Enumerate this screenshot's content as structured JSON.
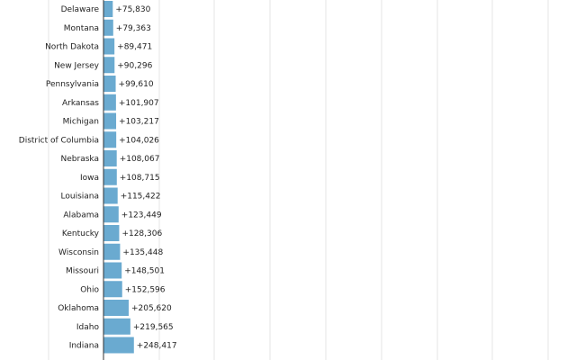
{
  "chart_data": {
    "type": "bar",
    "orientation": "horizontal",
    "value_prefix": "+",
    "categories": [
      "Delaware",
      "Montana",
      "North Dakota",
      "New Jersey",
      "Pennsylvania",
      "Arkansas",
      "Michigan",
      "District of Columbia",
      "Nebraska",
      "Iowa",
      "Louisiana",
      "Alabama",
      "Kentucky",
      "Wisconsin",
      "Missouri",
      "Ohio",
      "Oklahoma",
      "Idaho",
      "Indiana"
    ],
    "values": [
      75830,
      79363,
      89471,
      90296,
      99610,
      101907,
      103217,
      104026,
      108067,
      108715,
      115422,
      123449,
      128306,
      135448,
      148501,
      152596,
      205620,
      219565,
      248417
    ],
    "data_labels": [
      "+75,830",
      "+79,363",
      "+89,471",
      "+90,296",
      "+99,610",
      "+101,907",
      "+103,217",
      "+104,026",
      "+108,067",
      "+108,715",
      "+115,422",
      "+123,449",
      "+128,306",
      "+135,448",
      "+148,501",
      "+152,596",
      "+205,620",
      "+219,565",
      "+248,417"
    ],
    "grid": true,
    "bar_color": "#6aaad0",
    "title": "",
    "xlabel": "",
    "ylabel": ""
  }
}
